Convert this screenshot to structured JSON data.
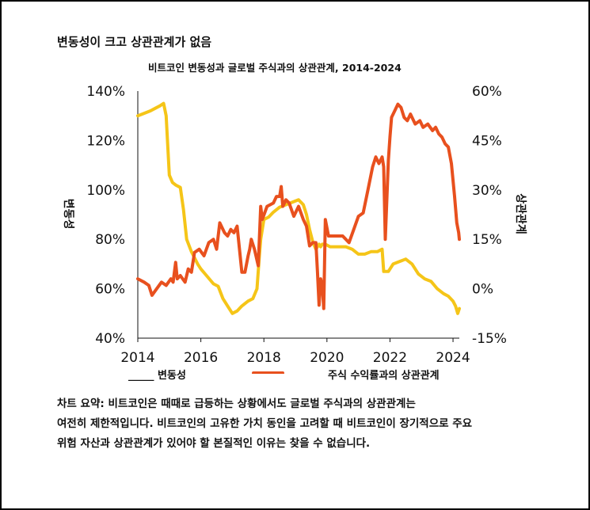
{
  "heading": "변동성이 크고 상관관계가 없음",
  "legend": {
    "volatility": "_____ 변동성",
    "correlation": "주식 수익률과의 상관관계"
  },
  "summary": [
    "차트 요약: 비트코인은 때때로 급등하는 상황에서도 글로벌 주식과의 상관관계는",
    "여전히 제한적입니다. 비트코인의 고유한 가치 동인을 고려할 때 비트코인이 장기적으로 주요",
    "위험 자산과 상관관계가 있어야 할 본질적인 이유는 찾을 수 없습니다."
  ],
  "colors": {
    "volatility": "#F5C518",
    "correlation": "#E8501E"
  },
  "chart_data": {
    "type": "line",
    "title": "비트코인 변동성과 글로벌 주식과의 상관관계, 2014-2024",
    "xlabel": "",
    "ylabel": "변동성",
    "y2label": "상관관계",
    "xlim": [
      2014,
      2024.2
    ],
    "ylim": [
      40,
      140
    ],
    "y2lim": [
      -15,
      60
    ],
    "x_ticks": [
      "2014",
      "2016",
      "2018",
      "2020",
      "2022",
      "2024"
    ],
    "y_ticks": [
      "40%",
      "60%",
      "80%",
      "100%",
      "120%",
      "140%"
    ],
    "y2_ticks": [
      "-15%",
      "0%",
      "15%",
      "30%",
      "45%",
      "60%"
    ],
    "grid": false,
    "legend_position": "bottom",
    "series": [
      {
        "name": "변동성",
        "axis": "left",
        "color": "#F5C518",
        "x": [
          2014.0,
          2014.2,
          2014.4,
          2014.55,
          2014.7,
          2014.82,
          2014.9,
          2015.0,
          2015.1,
          2015.2,
          2015.35,
          2015.45,
          2015.55,
          2015.7,
          2015.9,
          2016.0,
          2016.2,
          2016.4,
          2016.55,
          2016.7,
          2016.85,
          2017.0,
          2017.15,
          2017.3,
          2017.5,
          2017.65,
          2017.78,
          2017.85,
          2017.9,
          2018.0,
          2018.15,
          2018.3,
          2018.5,
          2018.7,
          2018.9,
          2019.1,
          2019.25,
          2019.35,
          2019.45,
          2019.55,
          2019.65,
          2019.75,
          2019.8,
          2019.85,
          2019.95,
          2020.1,
          2020.25,
          2020.4,
          2020.6,
          2020.8,
          2021.0,
          2021.2,
          2021.4,
          2021.6,
          2021.75,
          2021.8,
          2021.95,
          2022.1,
          2022.3,
          2022.5,
          2022.7,
          2022.9,
          2023.1,
          2023.3,
          2023.5,
          2023.7,
          2023.85,
          2024.0,
          2024.08,
          2024.15,
          2024.2
        ],
        "values": [
          130,
          131,
          132,
          133,
          134,
          135,
          130,
          106,
          103,
          102,
          101,
          92,
          80,
          75,
          70,
          68,
          65,
          62,
          61,
          56,
          53,
          50,
          51,
          53,
          55,
          56,
          60,
          72,
          80,
          88,
          89,
          91,
          93,
          94,
          95,
          96,
          94,
          90,
          84,
          79,
          76,
          78,
          77,
          78,
          78,
          77,
          77,
          77,
          77,
          76,
          74,
          74,
          75,
          75,
          76,
          67,
          67,
          70,
          71,
          72,
          70,
          66,
          64,
          63,
          60,
          58,
          57,
          55,
          53,
          50,
          52
        ]
      },
      {
        "name": "주식 수익률과의 상관관계",
        "axis": "right",
        "color": "#E8501E",
        "x": [
          2014.0,
          2014.2,
          2014.35,
          2014.45,
          2014.6,
          2014.75,
          2014.9,
          2015.05,
          2015.12,
          2015.2,
          2015.25,
          2015.35,
          2015.5,
          2015.6,
          2015.7,
          2015.8,
          2015.95,
          2016.1,
          2016.25,
          2016.4,
          2016.5,
          2016.6,
          2016.75,
          2016.85,
          2016.95,
          2017.05,
          2017.15,
          2017.3,
          2017.4,
          2017.5,
          2017.55,
          2017.6,
          2017.7,
          2017.82,
          2017.9,
          2017.95,
          2018.1,
          2018.3,
          2018.4,
          2018.5,
          2018.55,
          2018.6,
          2018.7,
          2018.8,
          2018.95,
          2019.1,
          2019.25,
          2019.35,
          2019.45,
          2019.55,
          2019.65,
          2019.7,
          2019.75,
          2019.8,
          2019.85,
          2019.9,
          2019.95,
          2020.05,
          2020.15,
          2020.3,
          2020.5,
          2020.7,
          2020.85,
          2021.0,
          2021.15,
          2021.3,
          2021.45,
          2021.55,
          2021.65,
          2021.75,
          2021.8,
          2021.85,
          2021.95,
          2022.0,
          2022.05,
          2022.15,
          2022.25,
          2022.35,
          2022.45,
          2022.55,
          2022.65,
          2022.8,
          2022.95,
          2023.05,
          2023.2,
          2023.35,
          2023.45,
          2023.55,
          2023.65,
          2023.75,
          2023.85,
          2023.95,
          2024.05,
          2024.12,
          2024.18,
          2024.2
        ],
        "values": [
          3,
          2,
          1,
          -2,
          0,
          2,
          1,
          3,
          2,
          8,
          3,
          4,
          2,
          6,
          5,
          11,
          12,
          10,
          14,
          15,
          12,
          20,
          17,
          16,
          18,
          17,
          19,
          5,
          5,
          10,
          12,
          15,
          12,
          7,
          25,
          21,
          25,
          26,
          28,
          28,
          31,
          25,
          27,
          26,
          22,
          25,
          21,
          19,
          13,
          14,
          14,
          5,
          -5,
          3,
          1,
          -6,
          21,
          16,
          16,
          16,
          16,
          14,
          18,
          22,
          23,
          30,
          37,
          40,
          38,
          40,
          37,
          15,
          39,
          46,
          52,
          54,
          56,
          55,
          52,
          51,
          53,
          50,
          51,
          49,
          50,
          48,
          49,
          47,
          46,
          44,
          43,
          38,
          28,
          20,
          17,
          15
        ]
      }
    ]
  }
}
